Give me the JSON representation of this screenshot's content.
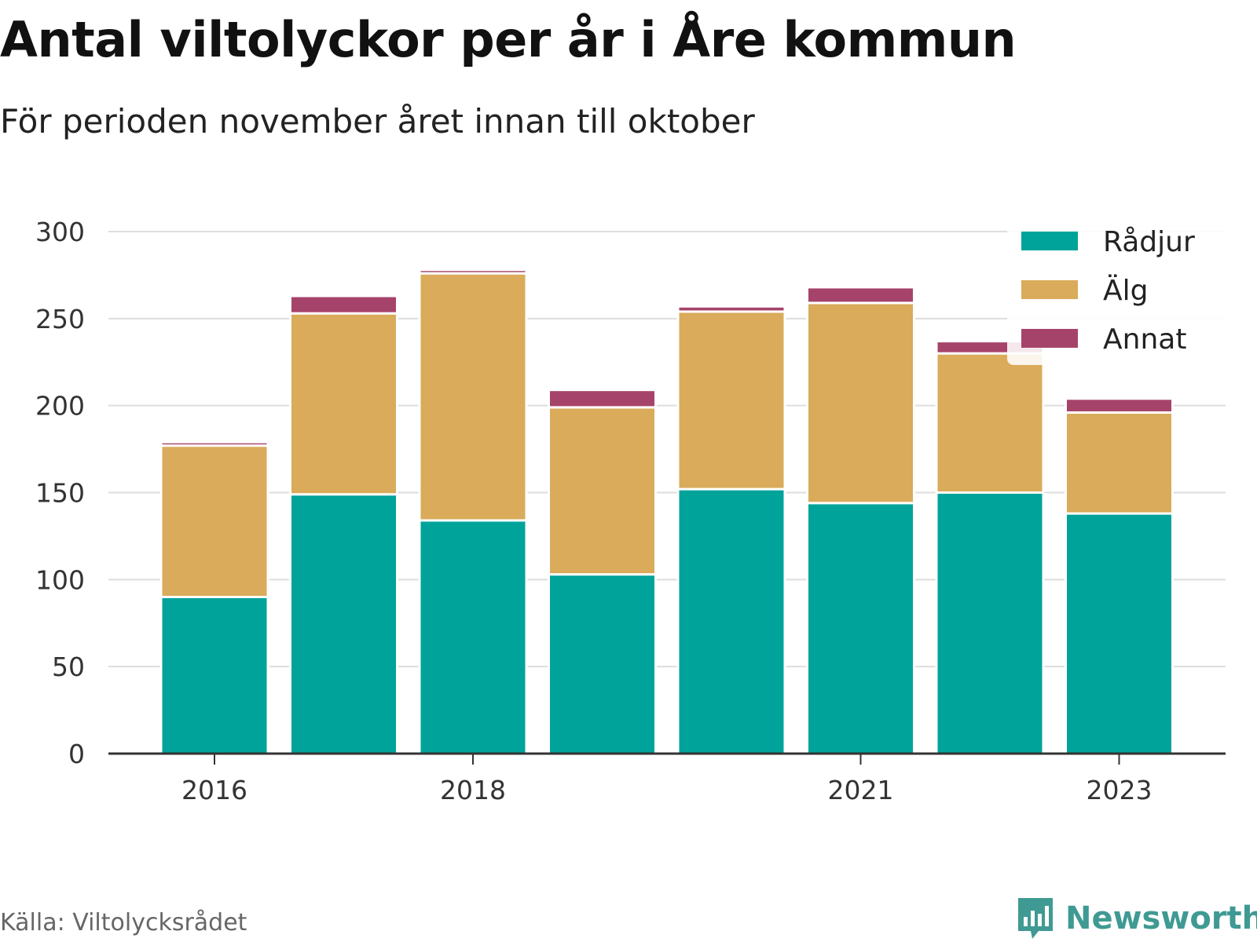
{
  "header": {
    "title": "Antal viltolyckor per år i Åre kommun",
    "subtitle": "För perioden november året innan till oktober"
  },
  "footer": {
    "source": "Källa: Viltolycksrådet",
    "brand": "Newsworthy"
  },
  "chart_data": {
    "type": "bar",
    "stacked": true,
    "categories": [
      "2016",
      "2017",
      "2018",
      "2019",
      "2020",
      "2021",
      "2022",
      "2023"
    ],
    "x_tick_labels": [
      "2016",
      "",
      "2018",
      "",
      "",
      "2021",
      "",
      "2023"
    ],
    "series": [
      {
        "name": "Rådjur",
        "color": "#00a39a",
        "values": [
          90,
          149,
          134,
          103,
          152,
          144,
          150,
          138
        ]
      },
      {
        "name": "Älg",
        "color": "#d9ab5a",
        "values": [
          87,
          104,
          142,
          96,
          102,
          115,
          80,
          58
        ]
      },
      {
        "name": "Annat",
        "color": "#a6436a",
        "values": [
          2,
          10,
          2,
          10,
          3,
          9,
          7,
          8
        ]
      }
    ],
    "y_ticks": [
      0,
      50,
      100,
      150,
      200,
      250,
      300
    ],
    "y_tick_labels": [
      "0",
      "50",
      "100",
      "150",
      "200",
      "250",
      "300"
    ],
    "ylim": [
      0,
      300
    ],
    "grid": true,
    "legend_position": "top-right"
  }
}
